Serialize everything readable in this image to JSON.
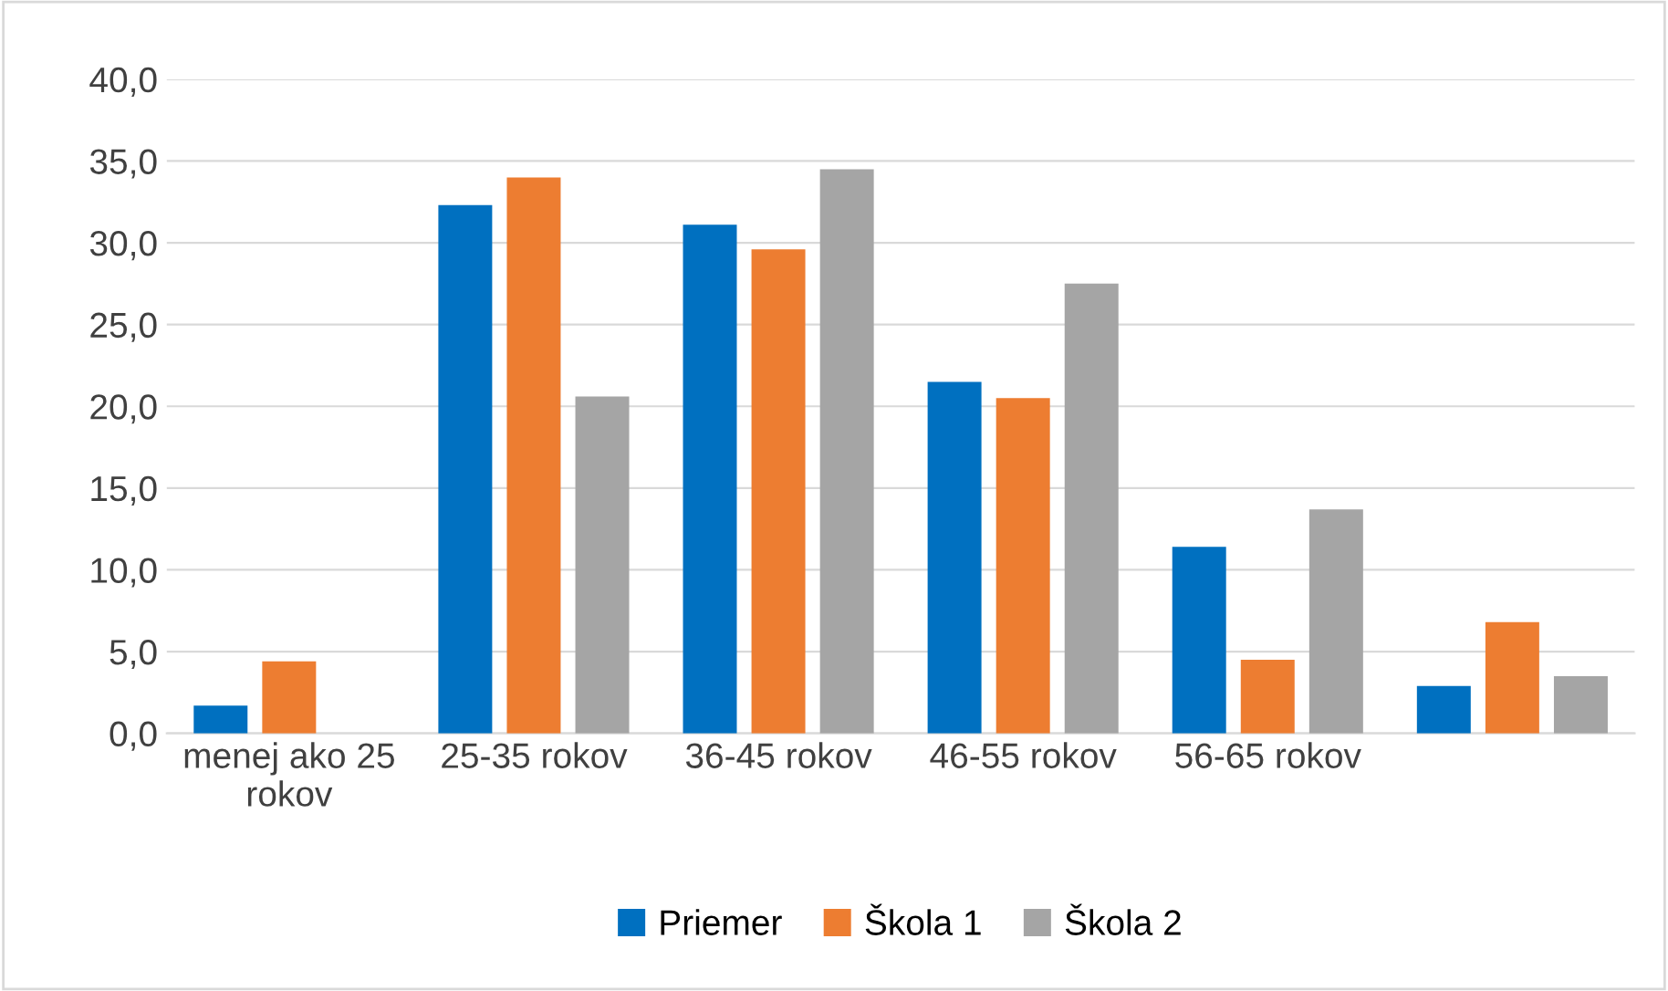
{
  "chart_data": {
    "type": "bar",
    "categories": [
      "menej ako 25\nrokov",
      "25-35 rokov",
      "36-45 rokov",
      "46-55 rokov",
      "56-65 rokov",
      null
    ],
    "series": [
      {
        "name": "Priemer",
        "color": "#0070c0",
        "values": [
          1.7,
          32.3,
          31.1,
          21.5,
          11.4,
          2.9
        ]
      },
      {
        "name": "Škola 1",
        "color": "#ed7d31",
        "values": [
          4.4,
          34.0,
          29.6,
          20.5,
          4.5,
          6.8
        ]
      },
      {
        "name": "Škola 2",
        "color": "#a5a5a5",
        "values": [
          0,
          20.6,
          34.5,
          27.5,
          13.7,
          3.5
        ]
      }
    ],
    "ylim": [
      0,
      40
    ],
    "yticks": [
      {
        "value": 0,
        "label": "0,0"
      },
      {
        "value": 5,
        "label": "5,0"
      },
      {
        "value": 10,
        "label": "10,0"
      },
      {
        "value": 15,
        "label": "15,0"
      },
      {
        "value": 20,
        "label": "20,0"
      },
      {
        "value": 25,
        "label": "25,0"
      },
      {
        "value": 30,
        "label": "30,0"
      },
      {
        "value": 35,
        "label": "35,0"
      },
      {
        "value": 40,
        "label": "40,0"
      }
    ],
    "grid": "y",
    "legend": "bottom"
  }
}
